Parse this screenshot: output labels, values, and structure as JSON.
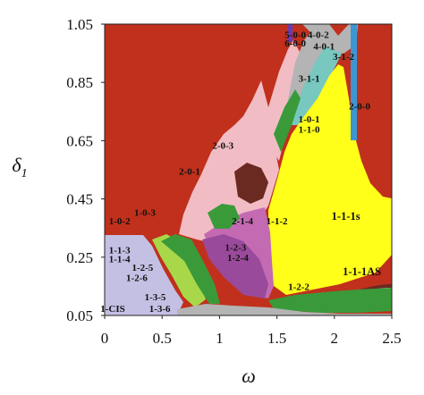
{
  "chart_data": {
    "type": "heatmap",
    "title": "",
    "xlabel": "ω",
    "ylabel": {
      "symbol": "δ",
      "subscript": "1"
    },
    "xlim": [
      0,
      2.5
    ],
    "ylim": [
      0.05,
      1.05
    ],
    "xticks": [
      "0",
      "0.5",
      "1",
      "1.5",
      "2",
      "2.5"
    ],
    "yticks": [
      "0.05",
      "0.25",
      "0.45",
      "0.65",
      "0.85",
      "1.05"
    ],
    "colors": {
      "background": "#c0301c",
      "yellow": "#ffff1a",
      "pink": "#f2bcc4",
      "magenta": "#c46ab2",
      "violet": "#9a4a9a",
      "lavender": "#c4c0e4",
      "green": "#3a9a3a",
      "lime": "#a8d84a",
      "brown": "#6a2a22",
      "blue": "#3c96d4",
      "gray": "#b4b4b4",
      "teal": "#78c8c0",
      "purple": "#6a3ab4"
    },
    "regions": [
      {
        "label": "5-0-0",
        "x": 1.66,
        "y": 1.015
      },
      {
        "label": "6-0-0",
        "x": 1.66,
        "y": 0.985
      },
      {
        "label": "4-0-2",
        "x": 1.86,
        "y": 1.015
      },
      {
        "label": "4-0-1",
        "x": 1.91,
        "y": 0.975
      },
      {
        "label": "3-1-2",
        "x": 2.08,
        "y": 0.94
      },
      {
        "label": "3-1-1",
        "x": 1.78,
        "y": 0.865
      },
      {
        "label": "2-0-0",
        "x": 2.22,
        "y": 0.77
      },
      {
        "label": "1-0-1",
        "x": 1.78,
        "y": 0.725
      },
      {
        "label": "1-1-0",
        "x": 1.78,
        "y": 0.69
      },
      {
        "label": "2-0-3",
        "x": 1.03,
        "y": 0.635
      },
      {
        "label": "2-0-1",
        "x": 0.74,
        "y": 0.545
      },
      {
        "label": "1-0-3",
        "x": 0.35,
        "y": 0.405
      },
      {
        "label": "1-0-2",
        "x": 0.13,
        "y": 0.375
      },
      {
        "label": "2-1-4",
        "x": 1.2,
        "y": 0.375
      },
      {
        "label": "1-1-2",
        "x": 1.5,
        "y": 0.375
      },
      {
        "label": "1-1-1s",
        "x": 2.1,
        "y": 0.39
      },
      {
        "label": "1-2-3",
        "x": 1.14,
        "y": 0.285
      },
      {
        "label": "1-2-4",
        "x": 1.16,
        "y": 0.25
      },
      {
        "label": "1-1-3",
        "x": 0.13,
        "y": 0.275
      },
      {
        "label": "1-1-4",
        "x": 0.13,
        "y": 0.245
      },
      {
        "label": "1-2-5",
        "x": 0.33,
        "y": 0.215
      },
      {
        "label": "1-2-6",
        "x": 0.28,
        "y": 0.18
      },
      {
        "label": "1-1-1AS",
        "x": 2.24,
        "y": 0.2
      },
      {
        "label": "1-2-2",
        "x": 1.69,
        "y": 0.15
      },
      {
        "label": "1-3-5",
        "x": 0.44,
        "y": 0.115
      },
      {
        "label": "1-CIS",
        "x": 0.07,
        "y": 0.075
      },
      {
        "label": "1-3-6",
        "x": 0.48,
        "y": 0.075
      }
    ]
  }
}
